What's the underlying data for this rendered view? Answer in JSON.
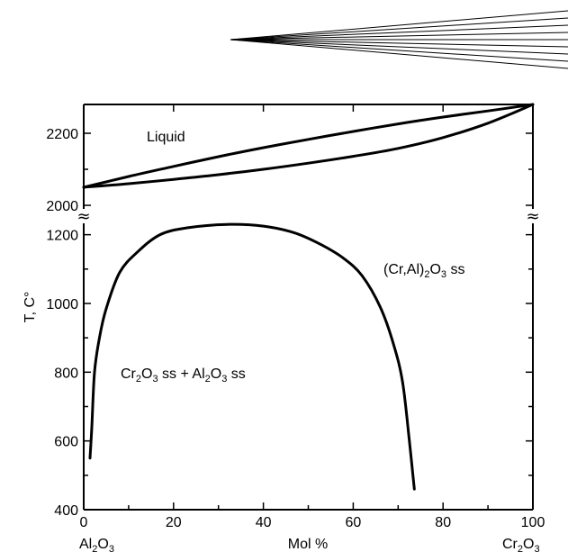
{
  "chart_data": {
    "type": "line",
    "title": "",
    "xlabel": "Mol %",
    "ylabel": "T, C°",
    "xlim": [
      0,
      100
    ],
    "x_ticks": [
      0,
      20,
      40,
      60,
      80,
      100
    ],
    "x_end_labels": {
      "left": {
        "base": "Al",
        "sub1": "2",
        "mid": "O",
        "sub2": "3"
      },
      "right": {
        "base": "Cr",
        "sub1": "2",
        "mid": "O",
        "sub2": "3"
      }
    },
    "y_upper": {
      "range": [
        2000,
        2280
      ],
      "ticks": [
        2000,
        2200
      ]
    },
    "y_lower": {
      "range": [
        400,
        1220
      ],
      "ticks": [
        400,
        600,
        800,
        1000,
        1200
      ]
    },
    "axis_break": "≈",
    "series": [
      {
        "id": "liquidus",
        "panel": "upper",
        "x": [
          0,
          10,
          20,
          30,
          40,
          50,
          60,
          70,
          80,
          90,
          100
        ],
        "y": [
          2050,
          2080,
          2108,
          2135,
          2160,
          2183,
          2205,
          2226,
          2245,
          2262,
          2280
        ]
      },
      {
        "id": "solidus",
        "panel": "upper",
        "x": [
          0,
          10,
          20,
          30,
          40,
          50,
          60,
          70,
          80,
          90,
          100
        ],
        "y": [
          2050,
          2060,
          2072,
          2085,
          2100,
          2117,
          2136,
          2158,
          2188,
          2228,
          2280
        ]
      },
      {
        "id": "miscibility-gap",
        "panel": "lower",
        "x": [
          1.4,
          1.8,
          2.4,
          3.5,
          5,
          8,
          12,
          17,
          23,
          32,
          40,
          47,
          53,
          58,
          62,
          66,
          69,
          71,
          72.5,
          73.6
        ],
        "y": [
          550,
          640,
          800,
          900,
          985,
          1090,
          1150,
          1200,
          1220,
          1230,
          1225,
          1205,
          1170,
          1130,
          1080,
          990,
          880,
          770,
          600,
          460
        ]
      }
    ],
    "annotations": {
      "liquid": "Liquid",
      "two_phase": {
        "p1": "Cr",
        "s1": "2",
        "p2": "O",
        "s2": "3",
        "p3": " ss + Al",
        "s3": "2",
        "p4": "O",
        "s4": "3",
        "p5": " ss"
      },
      "single_phase": {
        "p1": "(Cr,Al)",
        "s1": "2",
        "p2": "O",
        "s2": "3",
        "p3": " ss"
      }
    }
  }
}
